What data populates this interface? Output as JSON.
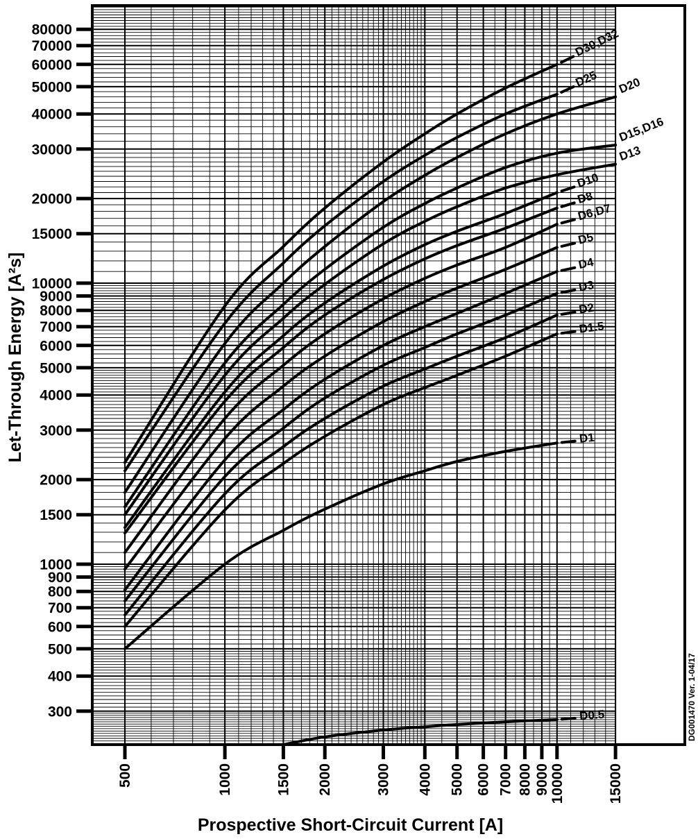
{
  "side_note": "DG001470 Ver. 1-04/17",
  "chart_data": {
    "type": "line",
    "title": "",
    "xlabel": "Prospective Short-Circuit Current [A]",
    "ylabel": "Let-Through Energy [A²s]",
    "x_scale": "log",
    "y_scale": "log",
    "xlim": [
      400,
      15000
    ],
    "ylim": [
      228,
      97000
    ],
    "grid": "on",
    "line_color": "#000000",
    "background": "#ffffff",
    "x_ticks": [
      500,
      1000,
      1500,
      2000,
      3000,
      4000,
      5000,
      6000,
      7000,
      8000,
      9000,
      10000,
      15000
    ],
    "y_ticks": [
      300,
      400,
      500,
      600,
      700,
      800,
      900,
      1000,
      1500,
      2000,
      3000,
      4000,
      5000,
      6000,
      7000,
      8000,
      9000,
      10000,
      15000,
      20000,
      30000,
      40000,
      50000,
      60000,
      70000,
      80000
    ],
    "series": [
      {
        "name": "D30,D32",
        "points": [
          [
            500,
            2300
          ],
          [
            1000,
            8300
          ],
          [
            1500,
            13500
          ],
          [
            2000,
            18500
          ],
          [
            3000,
            27000
          ],
          [
            4000,
            34000
          ],
          [
            5000,
            40000
          ],
          [
            7000,
            49500
          ],
          [
            10000,
            60000
          ]
        ]
      },
      {
        "name": "D25",
        "points": [
          [
            500,
            2150
          ],
          [
            1000,
            7200
          ],
          [
            1500,
            11800
          ],
          [
            2000,
            16000
          ],
          [
            3000,
            23000
          ],
          [
            4000,
            28500
          ],
          [
            5000,
            33000
          ],
          [
            7000,
            40000
          ],
          [
            10000,
            47000
          ]
        ]
      },
      {
        "name": "D20",
        "points": [
          [
            500,
            1800
          ],
          [
            1000,
            6100
          ],
          [
            1500,
            10000
          ],
          [
            2000,
            13500
          ],
          [
            3000,
            19500
          ],
          [
            4000,
            24200
          ],
          [
            5000,
            28000
          ],
          [
            7000,
            34000
          ],
          [
            10000,
            40000
          ],
          [
            15000,
            46000
          ]
        ]
      },
      {
        "name": "D15,D16",
        "points": [
          [
            500,
            1600
          ],
          [
            1000,
            5200
          ],
          [
            1500,
            8400
          ],
          [
            2000,
            11200
          ],
          [
            3000,
            15800
          ],
          [
            4000,
            19200
          ],
          [
            5000,
            21800
          ],
          [
            7000,
            25800
          ],
          [
            10000,
            29000
          ],
          [
            15000,
            31000
          ]
        ]
      },
      {
        "name": "D13",
        "points": [
          [
            500,
            1500
          ],
          [
            1000,
            4700
          ],
          [
            1500,
            7500
          ],
          [
            2000,
            9900
          ],
          [
            3000,
            13800
          ],
          [
            4000,
            16600
          ],
          [
            5000,
            18700
          ],
          [
            7000,
            21800
          ],
          [
            10000,
            24300
          ],
          [
            15000,
            26500
          ]
        ]
      },
      {
        "name": "D10",
        "points": [
          [
            500,
            1350
          ],
          [
            1000,
            4100
          ],
          [
            1500,
            6500
          ],
          [
            2000,
            8500
          ],
          [
            3000,
            11500
          ],
          [
            4000,
            13700
          ],
          [
            5000,
            15300
          ],
          [
            7000,
            17700
          ],
          [
            10000,
            21000
          ]
        ]
      },
      {
        "name": "D8",
        "points": [
          [
            500,
            1290
          ],
          [
            1000,
            3800
          ],
          [
            1500,
            5900
          ],
          [
            2000,
            7700
          ],
          [
            3000,
            10300
          ],
          [
            4000,
            12200
          ],
          [
            5000,
            13600
          ],
          [
            7000,
            15700
          ],
          [
            10000,
            18500
          ]
        ]
      },
      {
        "name": "D6,D7",
        "points": [
          [
            500,
            1100
          ],
          [
            1000,
            3300
          ],
          [
            1500,
            5100
          ],
          [
            2000,
            6600
          ],
          [
            3000,
            8800
          ],
          [
            4000,
            10400
          ],
          [
            5000,
            11600
          ],
          [
            7000,
            13400
          ],
          [
            10000,
            16200
          ]
        ]
      },
      {
        "name": "D5",
        "points": [
          [
            500,
            960
          ],
          [
            1000,
            2800
          ],
          [
            1500,
            4300
          ],
          [
            2000,
            5500
          ],
          [
            3000,
            7300
          ],
          [
            4000,
            8600
          ],
          [
            5000,
            9600
          ],
          [
            7000,
            11200
          ],
          [
            10000,
            13400
          ]
        ]
      },
      {
        "name": "D4",
        "points": [
          [
            500,
            810
          ],
          [
            1000,
            2350
          ],
          [
            1500,
            3550
          ],
          [
            2000,
            4550
          ],
          [
            3000,
            6000
          ],
          [
            4000,
            7000
          ],
          [
            5000,
            7800
          ],
          [
            7000,
            9200
          ],
          [
            10000,
            11000
          ]
        ]
      },
      {
        "name": "D3",
        "points": [
          [
            500,
            740
          ],
          [
            1000,
            2050
          ],
          [
            1500,
            3050
          ],
          [
            2000,
            3900
          ],
          [
            3000,
            5100
          ],
          [
            4000,
            5900
          ],
          [
            5000,
            6600
          ],
          [
            7000,
            7700
          ],
          [
            10000,
            9200
          ]
        ]
      },
      {
        "name": "D2",
        "points": [
          [
            500,
            660
          ],
          [
            1000,
            1780
          ],
          [
            1500,
            2620
          ],
          [
            2000,
            3300
          ],
          [
            3000,
            4300
          ],
          [
            4000,
            4950
          ],
          [
            5000,
            5500
          ],
          [
            7000,
            6400
          ],
          [
            10000,
            7700
          ]
        ]
      },
      {
        "name": "D1.5",
        "points": [
          [
            500,
            600
          ],
          [
            1000,
            1560
          ],
          [
            1500,
            2280
          ],
          [
            2000,
            2850
          ],
          [
            3000,
            3700
          ],
          [
            4000,
            4250
          ],
          [
            5000,
            4700
          ],
          [
            7000,
            5500
          ],
          [
            10000,
            6600
          ]
        ]
      },
      {
        "name": "D1",
        "points": [
          [
            500,
            500
          ],
          [
            1000,
            1000
          ],
          [
            1500,
            1320
          ],
          [
            2000,
            1570
          ],
          [
            3000,
            1930
          ],
          [
            4000,
            2150
          ],
          [
            5000,
            2320
          ],
          [
            7000,
            2520
          ],
          [
            10000,
            2700
          ]
        ]
      },
      {
        "name": "D0.5",
        "points": [
          [
            1500,
            228
          ],
          [
            2000,
            243
          ],
          [
            3000,
            257
          ],
          [
            4000,
            264
          ],
          [
            5000,
            269
          ],
          [
            7000,
            275
          ],
          [
            10000,
            280
          ]
        ]
      }
    ]
  }
}
